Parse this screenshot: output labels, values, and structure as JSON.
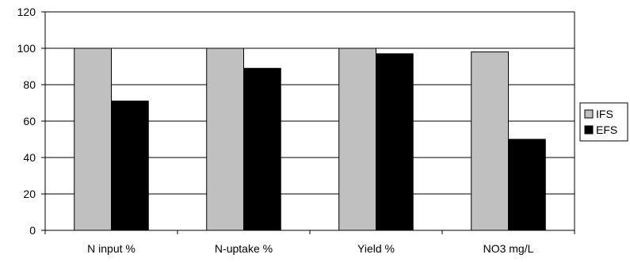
{
  "chart_data": {
    "type": "bar",
    "categories": [
      "N input %",
      "N-uptake %",
      "Yield %",
      "NO3 mg/L"
    ],
    "series": [
      {
        "name": "IFS",
        "values": [
          100,
          100,
          100,
          98
        ],
        "color": "#c0c0c0"
      },
      {
        "name": "EFS",
        "values": [
          71,
          89,
          97,
          50
        ],
        "color": "#000000"
      }
    ],
    "ylim": [
      0,
      120
    ],
    "yticks": [
      0,
      20,
      40,
      60,
      80,
      100,
      120
    ],
    "grid": true,
    "legend_position": "right"
  }
}
